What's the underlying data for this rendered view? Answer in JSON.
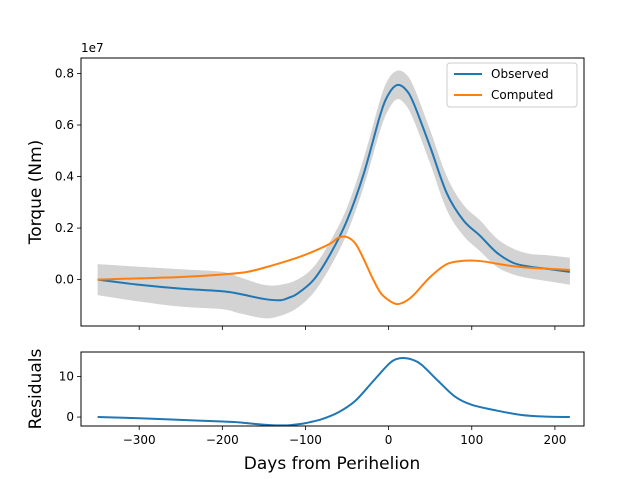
{
  "chart_data": [
    {
      "type": "line",
      "panel": "top",
      "title": "",
      "xlabel": "",
      "ylabel": "Torque (Nm)",
      "y_offset_text": "1e7",
      "xlim": [
        -370,
        235
      ],
      "ylim": [
        -0.18,
        0.86
      ],
      "xticks": [
        -300,
        -200,
        -100,
        0,
        100,
        200
      ],
      "yticks": [
        0.0,
        0.2,
        0.4,
        0.6,
        0.8
      ],
      "ytick_labels": [
        "0.0",
        "0.2",
        "0.4",
        "0.6",
        "0.8"
      ],
      "grid": false,
      "legend": {
        "location": "upper right",
        "entries": [
          "Observed",
          "Computed"
        ]
      },
      "band": {
        "name": "Observed uncertainty",
        "color": "#d3d3d3",
        "x": [
          -350,
          -300,
          -250,
          -200,
          -180,
          -150,
          -130,
          -110,
          -90,
          -70,
          -50,
          -30,
          -10,
          0,
          10,
          20,
          30,
          50,
          70,
          90,
          110,
          130,
          150,
          170,
          190,
          218
        ],
        "lower": [
          -0.06,
          -0.085,
          -0.105,
          -0.115,
          -0.13,
          -0.15,
          -0.14,
          -0.11,
          -0.05,
          0.05,
          0.18,
          0.36,
          0.58,
          0.66,
          0.7,
          0.68,
          0.62,
          0.45,
          0.27,
          0.17,
          0.11,
          0.05,
          0.02,
          0.005,
          -0.005,
          -0.02
        ],
        "upper": [
          0.06,
          0.05,
          0.04,
          0.03,
          0.01,
          -0.02,
          -0.02,
          0.0,
          0.05,
          0.15,
          0.28,
          0.47,
          0.7,
          0.78,
          0.81,
          0.8,
          0.75,
          0.58,
          0.4,
          0.29,
          0.23,
          0.16,
          0.12,
          0.1,
          0.095,
          0.085
        ]
      },
      "series": [
        {
          "name": "Observed",
          "color": "#1f77b4",
          "x": [
            -350,
            -300,
            -250,
            -200,
            -180,
            -150,
            -130,
            -120,
            -110,
            -90,
            -70,
            -50,
            -30,
            -10,
            0,
            10,
            20,
            30,
            50,
            70,
            90,
            110,
            130,
            150,
            170,
            190,
            218
          ],
          "y": [
            0.0,
            -0.02,
            -0.035,
            -0.045,
            -0.055,
            -0.075,
            -0.08,
            -0.07,
            -0.055,
            0.0,
            0.1,
            0.23,
            0.41,
            0.64,
            0.72,
            0.755,
            0.74,
            0.685,
            0.515,
            0.335,
            0.23,
            0.17,
            0.105,
            0.065,
            0.05,
            0.042,
            0.03
          ]
        },
        {
          "name": "Computed",
          "color": "#ff7f0e",
          "x": [
            -350,
            -300,
            -250,
            -200,
            -170,
            -140,
            -110,
            -90,
            -70,
            -60,
            -50,
            -40,
            -30,
            -20,
            -10,
            0,
            10,
            20,
            30,
            50,
            70,
            90,
            110,
            130,
            150,
            180,
            218
          ],
          "y": [
            0.0,
            0.005,
            0.01,
            0.02,
            0.03,
            0.055,
            0.085,
            0.11,
            0.14,
            0.163,
            0.165,
            0.14,
            0.08,
            0.01,
            -0.05,
            -0.08,
            -0.095,
            -0.085,
            -0.06,
            0.01,
            0.06,
            0.073,
            0.072,
            0.062,
            0.052,
            0.044,
            0.038
          ]
        }
      ]
    },
    {
      "type": "line",
      "panel": "bottom",
      "title": "",
      "xlabel": "Days from Perihelion",
      "ylabel": "Residuals",
      "xlim": [
        -370,
        235
      ],
      "ylim": [
        -2.2,
        16.0
      ],
      "xticks": [
        -300,
        -200,
        -100,
        0,
        100,
        200
      ],
      "xtick_labels": [
        "−300",
        "−200",
        "−100",
        "0",
        "100",
        "200"
      ],
      "yticks": [
        0,
        10
      ],
      "ytick_labels": [
        "0",
        "10"
      ],
      "grid": false,
      "series": [
        {
          "name": "Residuals",
          "color": "#1f77b4",
          "x": [
            -350,
            -300,
            -250,
            -200,
            -180,
            -160,
            -140,
            -130,
            -120,
            -110,
            -100,
            -80,
            -60,
            -40,
            -20,
            0,
            10,
            20,
            30,
            40,
            60,
            80,
            100,
            130,
            160,
            190,
            218
          ],
          "y": [
            0.0,
            -0.3,
            -0.7,
            -1.1,
            -1.3,
            -1.7,
            -2.0,
            -2.05,
            -2.0,
            -1.8,
            -1.5,
            -0.5,
            1.2,
            4.0,
            8.5,
            13.0,
            14.3,
            14.5,
            14.0,
            12.8,
            8.8,
            5.0,
            3.0,
            1.6,
            0.5,
            0.1,
            0.0
          ]
        }
      ]
    }
  ]
}
